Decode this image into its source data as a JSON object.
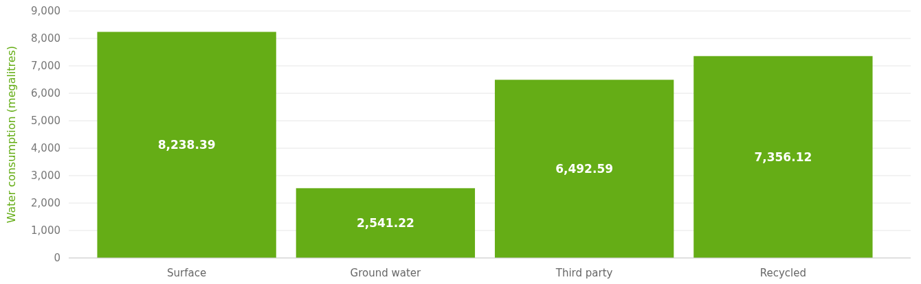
{
  "chart_data": {
    "type": "bar",
    "ylabel": "Water consumption (megalitres)",
    "categories": [
      "Surface",
      "Ground water",
      "Third party",
      "Recycled"
    ],
    "values": [
      8238.39,
      2541.22,
      6492.59,
      7356.12
    ],
    "color": "#65ad16",
    "ylim": [
      0,
      9000
    ],
    "yticks": [
      {
        "value": 0,
        "label": "0"
      },
      {
        "value": 1000,
        "label": "1,000"
      },
      {
        "value": 2000,
        "label": "2,000"
      },
      {
        "value": 3000,
        "label": "3,000"
      },
      {
        "value": 4000,
        "label": "4,000"
      },
      {
        "value": 5000,
        "label": "5,000"
      },
      {
        "value": 6000,
        "label": "6,000"
      },
      {
        "value": 7000,
        "label": "7,000"
      },
      {
        "value": 8000,
        "label": "8,000"
      },
      {
        "value": 9000,
        "label": "9,000"
      }
    ],
    "value_labels": [
      "8,238.39",
      "2,541.22",
      "6,492.59",
      "7,356.12"
    ],
    "grid": "y"
  }
}
